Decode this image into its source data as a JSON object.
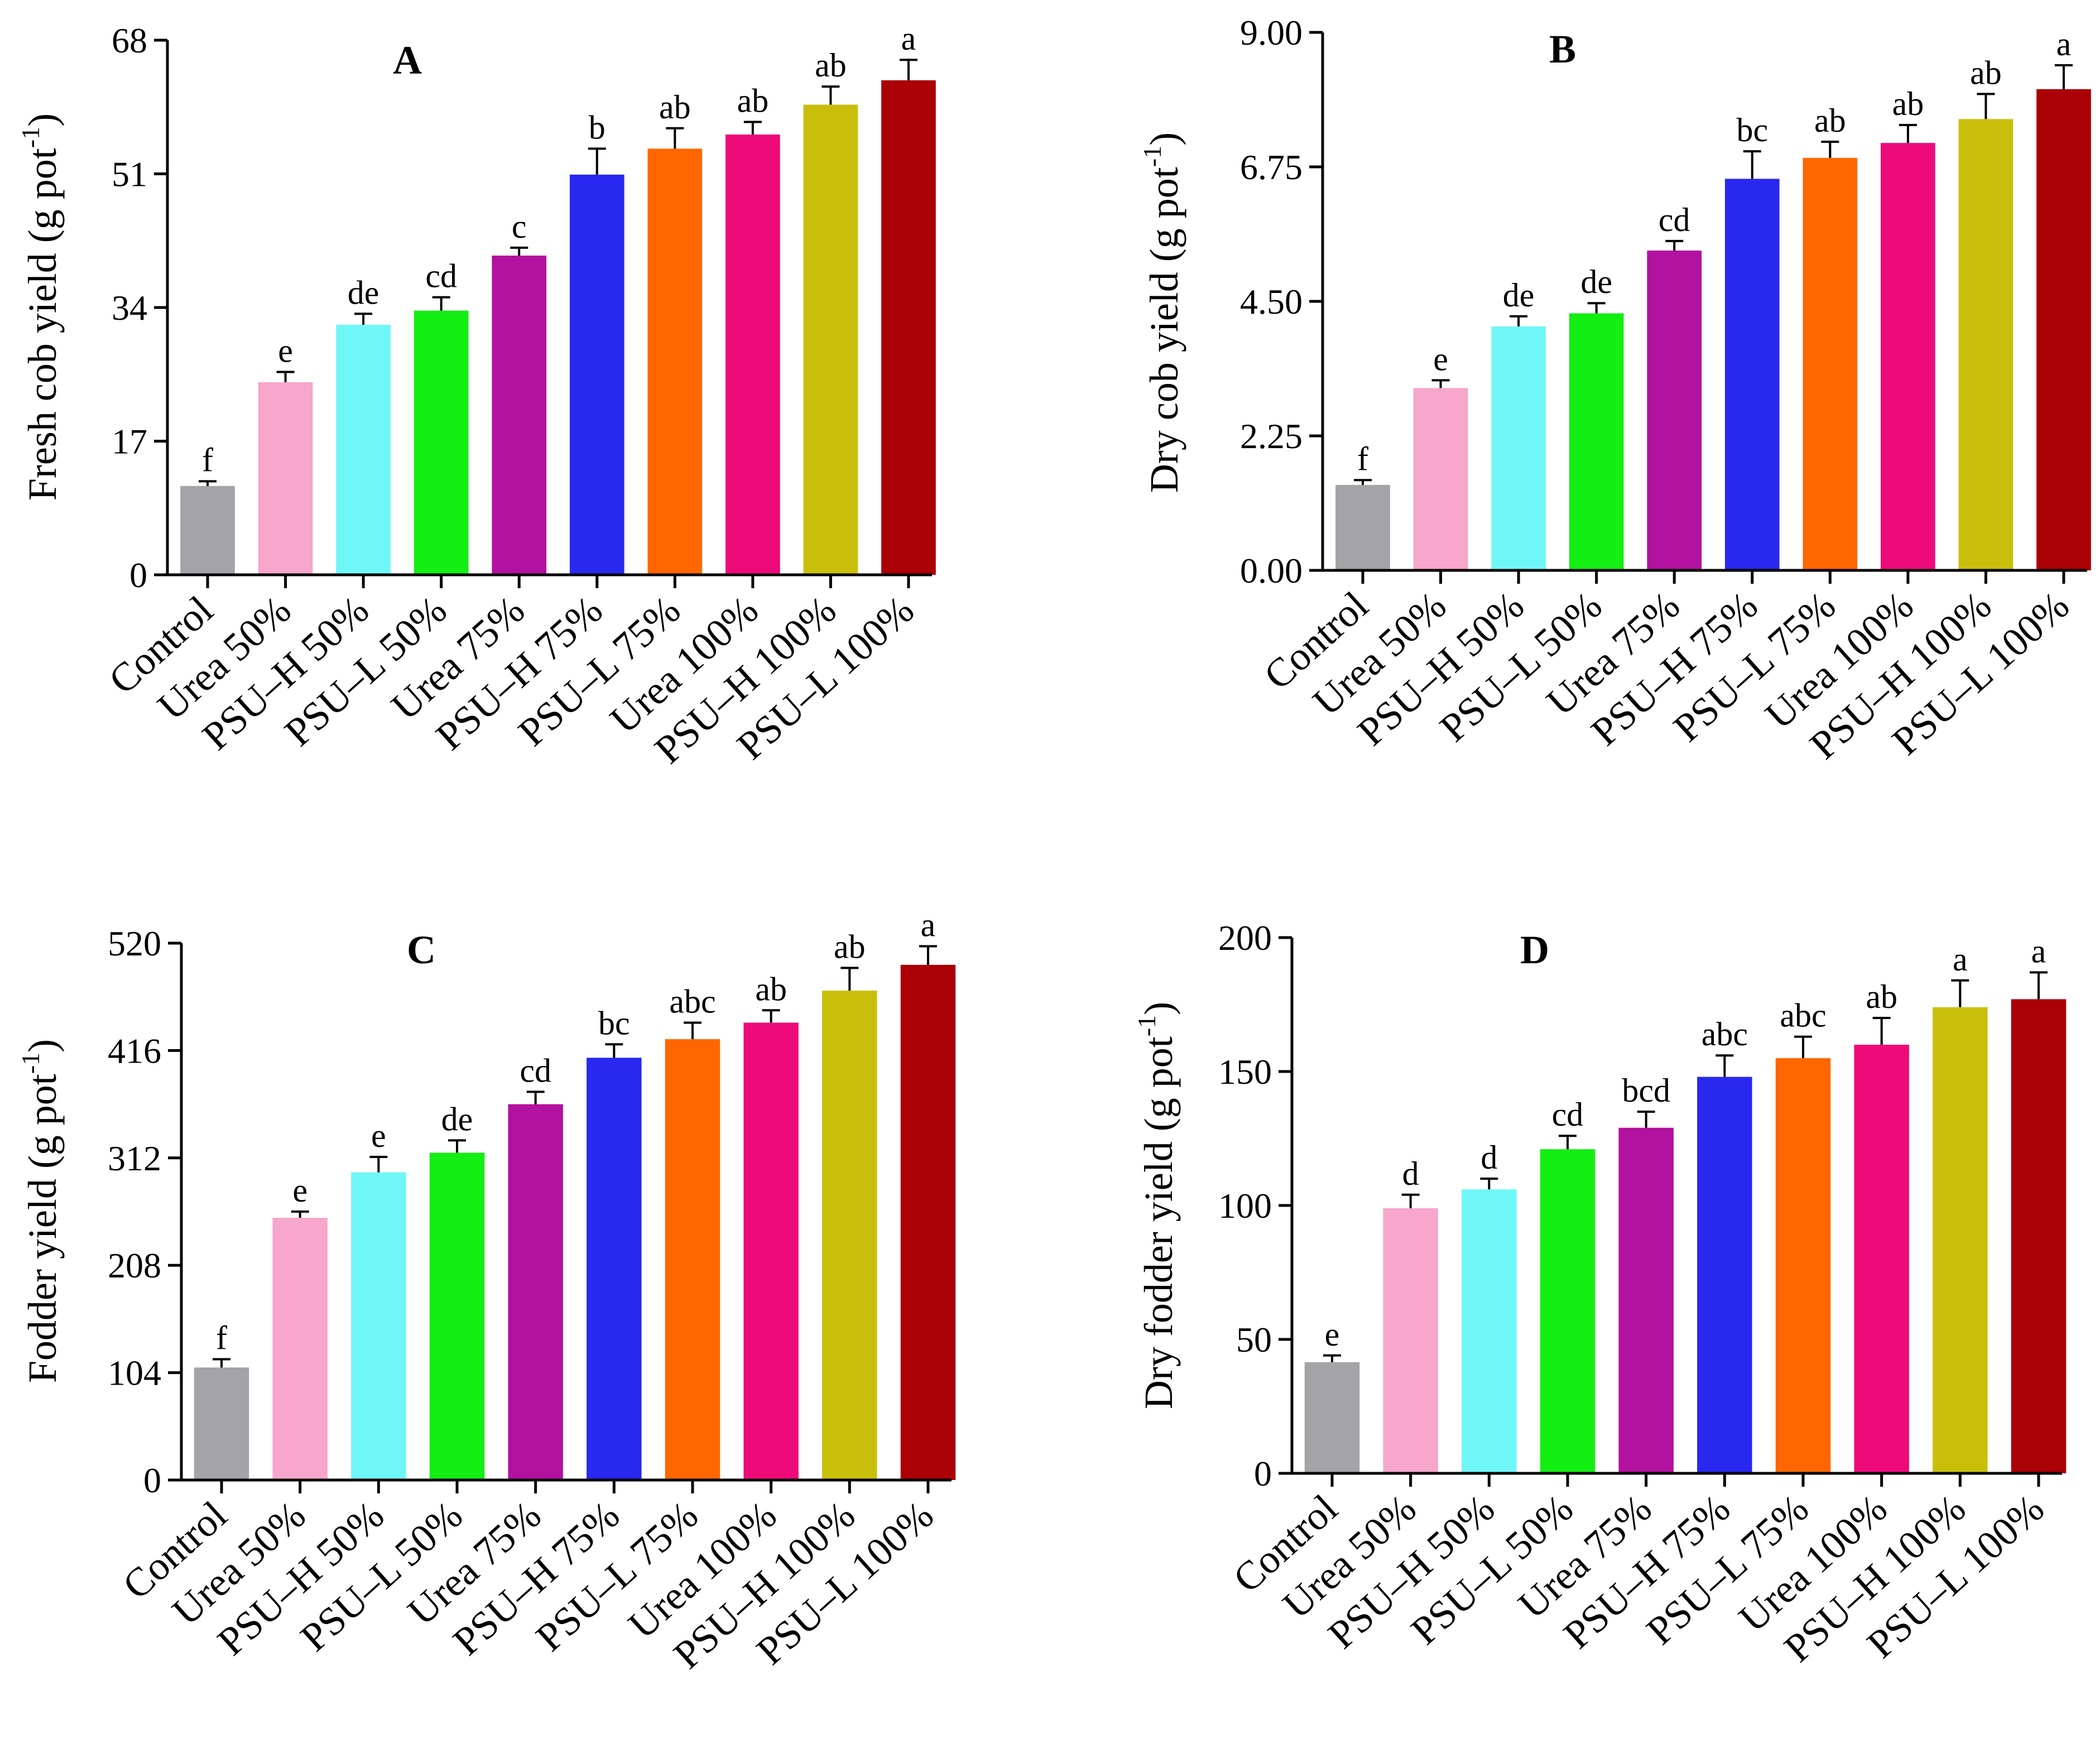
{
  "categories": [
    "Control",
    "Urea 50%",
    "PSU–H 50%",
    "PSU–L 50%",
    "Urea 75%",
    "PSU–H 75%",
    "PSU–L 75%",
    "Urea 100%",
    "PSU–H 100%",
    "PSU–L 100%"
  ],
  "colors": [
    "#a3a3a8",
    "#f7a6cc",
    "#6ff7f7",
    "#13ee13",
    "#b3119f",
    "#2828f0",
    "#ff6600",
    "#ef0a7a",
    "#c9bf0b",
    "#aa0006"
  ],
  "chart_data": [
    {
      "type": "bar",
      "panel": "A",
      "ylabel_main": "Fresh cob yield (g pot",
      "ylabel_sup": "-1",
      "ylabel_end": ")",
      "ylim": [
        0,
        68
      ],
      "yticks": [
        "0",
        "17",
        "34",
        "51",
        "68"
      ],
      "values": [
        11.3,
        24.5,
        31.8,
        33.6,
        40.6,
        50.9,
        54.2,
        56.0,
        59.8,
        62.9
      ],
      "errors": [
        0.6,
        1.3,
        1.4,
        1.7,
        1.0,
        3.3,
        2.6,
        1.6,
        2.3,
        2.6
      ],
      "significance": [
        "f",
        "e",
        "de",
        "cd",
        "c",
        "b",
        "ab",
        "ab",
        "ab",
        "a"
      ]
    },
    {
      "type": "bar",
      "panel": "B",
      "ylabel_main": "Dry cob yield (g pot",
      "ylabel_sup": "-1",
      "ylabel_end": ")",
      "ylim": [
        0,
        9
      ],
      "yticks": [
        "0.00",
        "2.25",
        "4.50",
        "6.75",
        "9.00"
      ],
      "values": [
        1.43,
        3.05,
        4.08,
        4.3,
        5.35,
        6.55,
        6.9,
        7.15,
        7.55,
        8.05
      ],
      "errors": [
        0.08,
        0.13,
        0.17,
        0.17,
        0.16,
        0.46,
        0.27,
        0.3,
        0.42,
        0.4
      ],
      "significance": [
        "f",
        "e",
        "de",
        "de",
        "cd",
        "bc",
        "ab",
        "ab",
        "ab",
        "a"
      ]
    },
    {
      "type": "bar",
      "panel": "C",
      "ylabel_main": "Fodder yield (g pot",
      "ylabel_sup": "-1",
      "ylabel_end": ")",
      "ylim": [
        0,
        520
      ],
      "yticks": [
        "0",
        "104",
        "208",
        "312",
        "416",
        "520"
      ],
      "values": [
        109,
        254,
        298,
        317,
        364,
        409,
        427,
        443,
        474,
        499
      ],
      "errors": [
        8,
        6,
        15,
        12,
        12,
        13,
        16,
        12,
        22,
        18
      ],
      "significance": [
        "f",
        "e",
        "e",
        "de",
        "cd",
        "bc",
        "abc",
        "ab",
        "ab",
        "a"
      ]
    },
    {
      "type": "bar",
      "panel": "D",
      "ylabel_main": "Dry fodder yield (g pot",
      "ylabel_sup": "-1",
      "ylabel_end": ")",
      "ylim": [
        0,
        200
      ],
      "yticks": [
        "0",
        "50",
        "100",
        "150",
        "200"
      ],
      "values": [
        41.5,
        99,
        106,
        121,
        129,
        148,
        155,
        160,
        174,
        177
      ],
      "errors": [
        2.5,
        5,
        4,
        5,
        6,
        8,
        8,
        10,
        10,
        10
      ],
      "significance": [
        "e",
        "d",
        "d",
        "cd",
        "bcd",
        "abc",
        "abc",
        "ab",
        "a",
        "a"
      ]
    }
  ]
}
